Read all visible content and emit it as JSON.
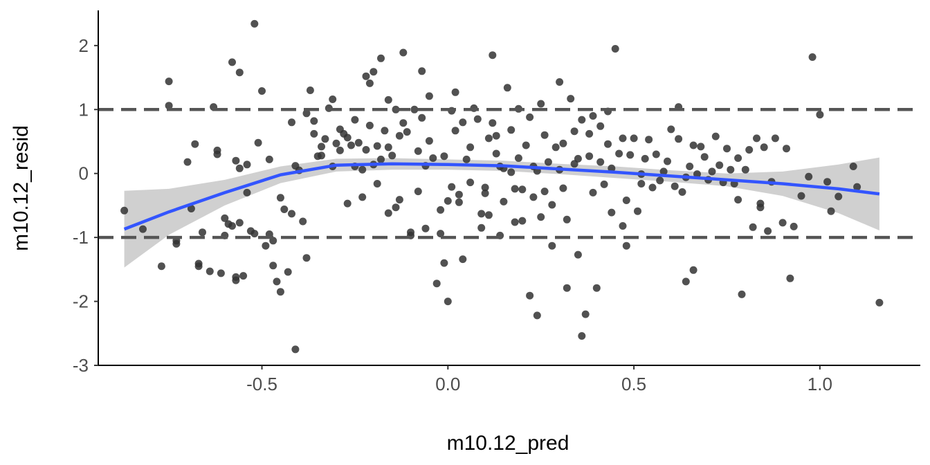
{
  "chart_data": {
    "type": "scatter",
    "title": "",
    "xlabel": "m10.12_pred",
    "ylabel": "m10.12_resid",
    "xlim": [
      -0.94,
      1.27
    ],
    "ylim": [
      -3.0,
      2.55
    ],
    "x_ticks": [
      -0.5,
      0.0,
      0.5,
      1.0
    ],
    "x_tick_labels": [
      "-0.5",
      "0.0",
      "0.5",
      "1.0"
    ],
    "y_ticks": [
      -3,
      -2,
      -1,
      0,
      1,
      2
    ],
    "y_tick_labels": [
      "-3",
      "-2",
      "-1",
      "0",
      "1",
      "2"
    ],
    "grid": false,
    "reference_lines": [
      {
        "y": 1,
        "style": "dashed",
        "color": "#555555"
      },
      {
        "y": -1,
        "style": "dashed",
        "color": "#555555"
      }
    ],
    "colors": {
      "points": "#333333",
      "smooth": "#3355ff",
      "band": "#c8c8c8"
    },
    "points": [
      [
        -0.87,
        -0.58
      ],
      [
        -0.82,
        -0.87
      ],
      [
        -0.77,
        -1.45
      ],
      [
        -0.75,
        1.44
      ],
      [
        -0.75,
        1.06
      ],
      [
        -0.73,
        -1.05
      ],
      [
        -0.73,
        -1.1
      ],
      [
        -0.7,
        0.18
      ],
      [
        -0.69,
        -0.55
      ],
      [
        -0.68,
        0.46
      ],
      [
        -0.67,
        -1.41
      ],
      [
        -0.67,
        -1.45
      ],
      [
        -0.66,
        -0.92
      ],
      [
        -0.64,
        -1.53
      ],
      [
        -0.63,
        1.04
      ],
      [
        -0.62,
        0.36
      ],
      [
        -0.62,
        0.3
      ],
      [
        -0.61,
        -1.56
      ],
      [
        -0.6,
        -0.7
      ],
      [
        -0.6,
        -0.97
      ],
      [
        -0.59,
        -0.79
      ],
      [
        -0.58,
        1.74
      ],
      [
        -0.58,
        -0.82
      ],
      [
        -0.57,
        0.2
      ],
      [
        -0.57,
        -1.62
      ],
      [
        -0.57,
        -1.67
      ],
      [
        -0.56,
        1.58
      ],
      [
        -0.56,
        0.08
      ],
      [
        -0.56,
        -0.77
      ],
      [
        -0.55,
        -1.6
      ],
      [
        -0.54,
        0.14
      ],
      [
        -0.54,
        -0.3
      ],
      [
        -0.53,
        -0.9
      ],
      [
        -0.52,
        2.34
      ],
      [
        -0.52,
        -0.94
      ],
      [
        -0.51,
        0.48
      ],
      [
        -0.5,
        1.29
      ],
      [
        -0.49,
        -1.13
      ],
      [
        -0.48,
        0.22
      ],
      [
        -0.48,
        -0.95
      ],
      [
        -0.47,
        -1.44
      ],
      [
        -0.47,
        -1.05
      ],
      [
        -0.46,
        -1.69
      ],
      [
        -0.45,
        -1.85
      ],
      [
        -0.45,
        -0.38
      ],
      [
        -0.44,
        -0.56
      ],
      [
        -0.43,
        -1.54
      ],
      [
        -0.42,
        0.8
      ],
      [
        -0.42,
        -0.63
      ],
      [
        -0.41,
        -2.75
      ],
      [
        -0.41,
        0.12
      ],
      [
        -0.4,
        0.05
      ],
      [
        -0.39,
        -0.75
      ],
      [
        -0.38,
        0.94
      ],
      [
        -0.38,
        -1.32
      ],
      [
        -0.37,
        1.3
      ],
      [
        -0.36,
        0.62
      ],
      [
        -0.36,
        0.82
      ],
      [
        -0.35,
        0.27
      ],
      [
        -0.34,
        0.42
      ],
      [
        -0.34,
        0.28
      ],
      [
        -0.33,
        0.54
      ],
      [
        -0.32,
        1.02
      ],
      [
        -0.31,
        1.16
      ],
      [
        -0.31,
        0.11
      ],
      [
        -0.3,
        0.47
      ],
      [
        -0.29,
        0.36
      ],
      [
        -0.29,
        0.69
      ],
      [
        -0.28,
        0.62
      ],
      [
        -0.27,
        0.56
      ],
      [
        -0.27,
        -0.47
      ],
      [
        -0.26,
        0.44
      ],
      [
        -0.25,
        0.84
      ],
      [
        -0.25,
        0.11
      ],
      [
        -0.24,
        0.48
      ],
      [
        -0.23,
        0.06
      ],
      [
        -0.23,
        -0.37
      ],
      [
        -0.22,
        1.52
      ],
      [
        -0.22,
        0.37
      ],
      [
        -0.21,
        1.41
      ],
      [
        -0.21,
        0.75
      ],
      [
        -0.2,
        1.59
      ],
      [
        -0.2,
        0.14
      ],
      [
        -0.19,
        0.43
      ],
      [
        -0.19,
        -0.16
      ],
      [
        -0.18,
        1.8
      ],
      [
        -0.18,
        0.22
      ],
      [
        -0.17,
        0.67
      ],
      [
        -0.16,
        1.15
      ],
      [
        -0.16,
        0.41
      ],
      [
        -0.16,
        -0.62
      ],
      [
        -0.15,
        0.28
      ],
      [
        -0.14,
        -0.53
      ],
      [
        -0.14,
        1.0
      ],
      [
        -0.13,
        0.59
      ],
      [
        -0.13,
        -0.41
      ],
      [
        -0.12,
        1.89
      ],
      [
        -0.12,
        0.79
      ],
      [
        -0.11,
        0.65
      ],
      [
        -0.1,
        -0.92
      ],
      [
        -0.1,
        -0.97
      ],
      [
        -0.09,
        1.0
      ],
      [
        -0.08,
        -0.28
      ],
      [
        -0.08,
        0.35
      ],
      [
        -0.07,
        1.6
      ],
      [
        -0.07,
        0.87
      ],
      [
        -0.06,
        0.12
      ],
      [
        -0.06,
        -0.86
      ],
      [
        -0.05,
        1.21
      ],
      [
        -0.05,
        0.51
      ],
      [
        -0.04,
        0.24
      ],
      [
        -0.03,
        -1.72
      ],
      [
        -0.02,
        -0.94
      ],
      [
        -0.02,
        -0.57
      ],
      [
        -0.01,
        0.27
      ],
      [
        -0.01,
        -1.4
      ],
      [
        0.0,
        -0.43
      ],
      [
        0.0,
        -2.0
      ],
      [
        0.01,
        0.98
      ],
      [
        0.01,
        -0.21
      ],
      [
        0.02,
        1.27
      ],
      [
        0.02,
        0.67
      ],
      [
        0.03,
        -0.33
      ],
      [
        0.03,
        -0.45
      ],
      [
        0.04,
        0.8
      ],
      [
        0.04,
        -1.34
      ],
      [
        0.05,
        0.22
      ],
      [
        0.06,
        0.41
      ],
      [
        0.06,
        -0.14
      ],
      [
        0.07,
        1.02
      ],
      [
        0.08,
        0.85
      ],
      [
        0.09,
        -0.63
      ],
      [
        0.09,
        -0.85
      ],
      [
        0.1,
        -0.22
      ],
      [
        0.1,
        -0.31
      ],
      [
        0.11,
        0.55
      ],
      [
        0.11,
        -0.65
      ],
      [
        0.12,
        1.85
      ],
      [
        0.12,
        0.79
      ],
      [
        0.13,
        0.31
      ],
      [
        0.13,
        0.59
      ],
      [
        0.14,
        -0.97
      ],
      [
        0.14,
        0.11
      ],
      [
        0.15,
        0.08
      ],
      [
        0.15,
        -0.44
      ],
      [
        0.16,
        1.34
      ],
      [
        0.17,
        0.68
      ],
      [
        0.17,
        0.02
      ],
      [
        0.18,
        -0.24
      ],
      [
        0.18,
        -0.76
      ],
      [
        0.19,
        1.01
      ],
      [
        0.19,
        0.24
      ],
      [
        0.2,
        -0.25
      ],
      [
        0.2,
        -0.74
      ],
      [
        0.21,
        0.44
      ],
      [
        0.22,
        -1.91
      ],
      [
        0.22,
        0.88
      ],
      [
        0.23,
        0.11
      ],
      [
        0.23,
        -0.37
      ],
      [
        0.24,
        -2.22
      ],
      [
        0.24,
        0.04
      ],
      [
        0.25,
        -0.68
      ],
      [
        0.25,
        1.09
      ],
      [
        0.26,
        -0.28
      ],
      [
        0.26,
        0.6
      ],
      [
        0.27,
        0.18
      ],
      [
        0.28,
        -1.13
      ],
      [
        0.28,
        -0.49
      ],
      [
        0.29,
        0.41
      ],
      [
        0.3,
        1.43
      ],
      [
        0.3,
        0.06
      ],
      [
        0.31,
        -0.23
      ],
      [
        0.31,
        0.47
      ],
      [
        0.32,
        -1.79
      ],
      [
        0.32,
        -0.72
      ],
      [
        0.33,
        1.17
      ],
      [
        0.34,
        0.15
      ],
      [
        0.34,
        0.66
      ],
      [
        0.35,
        -1.27
      ],
      [
        0.35,
        0.23
      ],
      [
        0.36,
        0.84
      ],
      [
        0.36,
        -2.54
      ],
      [
        0.37,
        -2.2
      ],
      [
        0.38,
        0.62
      ],
      [
        0.38,
        0.27
      ],
      [
        0.39,
        -0.3
      ],
      [
        0.39,
        0.9
      ],
      [
        0.4,
        -1.79
      ],
      [
        0.41,
        0.18
      ],
      [
        0.41,
        0.74
      ],
      [
        0.42,
        -0.17
      ],
      [
        0.43,
        0.46
      ],
      [
        0.43,
        0.97
      ],
      [
        0.44,
        0.08
      ],
      [
        0.44,
        -0.61
      ],
      [
        0.45,
        1.95
      ],
      [
        0.46,
        0.31
      ],
      [
        0.47,
        -0.82
      ],
      [
        0.47,
        0.55
      ],
      [
        0.48,
        -1.13
      ],
      [
        0.48,
        -0.42
      ],
      [
        0.49,
        0.29
      ],
      [
        0.5,
        0.55
      ],
      [
        0.51,
        -0.59
      ],
      [
        0.52,
        -0.01
      ],
      [
        0.52,
        -0.16
      ],
      [
        0.53,
        0.23
      ],
      [
        0.54,
        0.53
      ],
      [
        0.55,
        -0.22
      ],
      [
        0.56,
        0.3
      ],
      [
        0.57,
        -0.11
      ],
      [
        0.58,
        0.03
      ],
      [
        0.59,
        0.19
      ],
      [
        0.6,
        0.69
      ],
      [
        0.61,
        -0.2
      ],
      [
        0.62,
        0.54
      ],
      [
        0.62,
        1.04
      ],
      [
        0.63,
        -0.29
      ],
      [
        0.64,
        -1.69
      ],
      [
        0.64,
        -0.06
      ],
      [
        0.65,
        0.11
      ],
      [
        0.66,
        0.44
      ],
      [
        0.66,
        -1.51
      ],
      [
        0.67,
        -0.01
      ],
      [
        0.68,
        0.42
      ],
      [
        0.69,
        0.26
      ],
      [
        0.7,
        -0.1
      ],
      [
        0.71,
        0.03
      ],
      [
        0.72,
        0.58
      ],
      [
        0.73,
        0.13
      ],
      [
        0.74,
        -0.14
      ],
      [
        0.75,
        0.39
      ],
      [
        0.76,
        0.06
      ],
      [
        0.77,
        -0.16
      ],
      [
        0.78,
        -0.41
      ],
      [
        0.78,
        0.24
      ],
      [
        0.79,
        -1.89
      ],
      [
        0.8,
        0.06
      ],
      [
        0.81,
        0.37
      ],
      [
        0.82,
        -0.84
      ],
      [
        0.83,
        0.55
      ],
      [
        0.84,
        -0.47
      ],
      [
        0.84,
        -0.53
      ],
      [
        0.85,
        0.41
      ],
      [
        0.86,
        -0.9
      ],
      [
        0.87,
        -0.13
      ],
      [
        0.88,
        0.55
      ],
      [
        0.9,
        -0.77
      ],
      [
        0.91,
        0.39
      ],
      [
        0.92,
        -1.64
      ],
      [
        0.93,
        -0.83
      ],
      [
        0.95,
        -0.35
      ],
      [
        0.97,
        -0.05
      ],
      [
        0.98,
        1.82
      ],
      [
        1.0,
        0.92
      ],
      [
        1.02,
        -0.13
      ],
      [
        1.03,
        -0.59
      ],
      [
        1.05,
        -0.36
      ],
      [
        1.09,
        0.11
      ],
      [
        1.1,
        -0.21
      ],
      [
        1.16,
        -2.02
      ]
    ],
    "smooth": [
      {
        "x": -0.87,
        "y": -0.87,
        "lo": -1.47,
        "hi": -0.27
      },
      {
        "x": -0.75,
        "y": -0.6,
        "lo": -0.96,
        "hi": -0.24
      },
      {
        "x": -0.6,
        "y": -0.3,
        "lo": -0.5,
        "hi": -0.1
      },
      {
        "x": -0.45,
        "y": -0.02,
        "lo": -0.15,
        "hi": 0.11
      },
      {
        "x": -0.3,
        "y": 0.13,
        "lo": 0.03,
        "hi": 0.23
      },
      {
        "x": -0.15,
        "y": 0.15,
        "lo": 0.06,
        "hi": 0.24
      },
      {
        "x": 0.0,
        "y": 0.14,
        "lo": 0.06,
        "hi": 0.22
      },
      {
        "x": 0.15,
        "y": 0.12,
        "lo": 0.04,
        "hi": 0.2
      },
      {
        "x": 0.3,
        "y": 0.07,
        "lo": -0.01,
        "hi": 0.15
      },
      {
        "x": 0.45,
        "y": 0.02,
        "lo": -0.07,
        "hi": 0.11
      },
      {
        "x": 0.6,
        "y": -0.04,
        "lo": -0.13,
        "hi": 0.05
      },
      {
        "x": 0.75,
        "y": -0.1,
        "lo": -0.2,
        "hi": 0.0
      },
      {
        "x": 0.9,
        "y": -0.16,
        "lo": -0.35,
        "hi": 0.03
      },
      {
        "x": 1.05,
        "y": -0.24,
        "lo": -0.62,
        "hi": 0.14
      },
      {
        "x": 1.16,
        "y": -0.32,
        "lo": -0.89,
        "hi": 0.25
      }
    ]
  }
}
